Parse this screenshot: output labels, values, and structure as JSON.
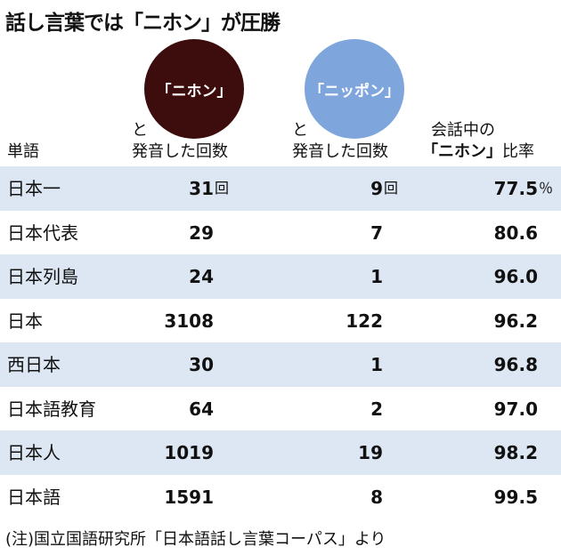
{
  "title": "話し言葉では「ニホン」が圧勝",
  "header": {
    "word": "単語",
    "nihon": {
      "badge": "「ニホン」",
      "line1": "と",
      "line2": "発音した回数"
    },
    "nippon": {
      "badge": "「ニッポン」",
      "line1": "と",
      "line2": "発音した回数"
    },
    "ratio": {
      "line1": "会話中の",
      "bold": "「ニホン」",
      "line2": "比率"
    }
  },
  "units": {
    "count": "回",
    "ratio": "％"
  },
  "rows": [
    {
      "word": "日本一",
      "nihon": "31",
      "nippon": "9",
      "ratio": "77.5"
    },
    {
      "word": "日本代表",
      "nihon": "29",
      "nippon": "7",
      "ratio": "80.6"
    },
    {
      "word": "日本列島",
      "nihon": "24",
      "nippon": "1",
      "ratio": "96.0"
    },
    {
      "word": "日本",
      "nihon": "3108",
      "nippon": "122",
      "ratio": "96.2"
    },
    {
      "word": "西日本",
      "nihon": "30",
      "nippon": "1",
      "ratio": "96.8"
    },
    {
      "word": "日本語教育",
      "nihon": "64",
      "nippon": "2",
      "ratio": "97.0"
    },
    {
      "word": "日本人",
      "nihon": "1019",
      "nippon": "19",
      "ratio": "98.2"
    },
    {
      "word": "日本語",
      "nihon": "1591",
      "nippon": "8",
      "ratio": "99.5"
    }
  ],
  "note": "(注)国立国語研究所「日本語話し言葉コーパス」より"
}
